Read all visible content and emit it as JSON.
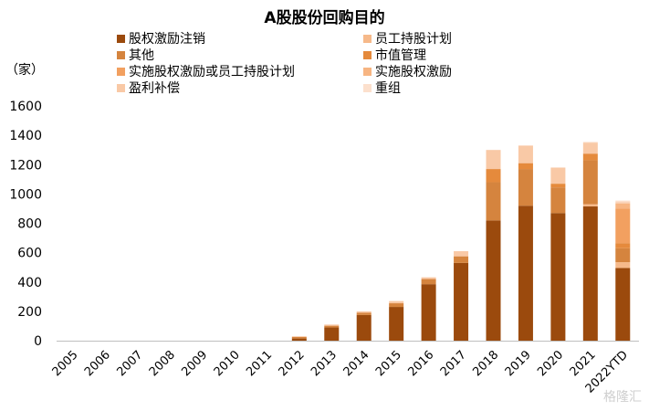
{
  "chart_data": {
    "type": "bar",
    "stacked": true,
    "title": "A股股份回购目的",
    "unit_label": "（家）",
    "categories": [
      "2005",
      "2006",
      "2007",
      "2008",
      "2009",
      "2010",
      "2011",
      "2012",
      "2013",
      "2014",
      "2015",
      "2016",
      "2017",
      "2018",
      "2019",
      "2020",
      "2021",
      "2022YTD"
    ],
    "ylim": [
      0,
      1600
    ],
    "yticks": [
      0,
      200,
      400,
      600,
      800,
      1000,
      1200,
      1400,
      1600
    ],
    "grid": false,
    "legend_position": "top",
    "series": [
      {
        "name": "股权激励注销",
        "color": "#9b4a0d",
        "values": [
          0,
          0,
          0,
          0,
          0,
          0,
          0,
          15,
          90,
          175,
          230,
          385,
          530,
          820,
          920,
          870,
          915,
          495
        ]
      },
      {
        "name": "员工持股计划",
        "color": "#f6b98a",
        "values": [
          0,
          0,
          0,
          0,
          0,
          0,
          0,
          0,
          0,
          0,
          0,
          0,
          0,
          0,
          0,
          0,
          15,
          40
        ]
      },
      {
        "name": "其他",
        "color": "#d5843e",
        "values": [
          0,
          0,
          0,
          0,
          0,
          0,
          0,
          10,
          12,
          15,
          25,
          35,
          45,
          260,
          250,
          175,
          300,
          95
        ]
      },
      {
        "name": "市值管理",
        "color": "#e58a3c",
        "values": [
          0,
          0,
          0,
          0,
          0,
          0,
          0,
          0,
          0,
          0,
          0,
          0,
          0,
          90,
          40,
          25,
          45,
          35
        ]
      },
      {
        "name": "实施股权激励或员工持股计划",
        "color": "#f2a060",
        "values": [
          0,
          0,
          0,
          0,
          0,
          0,
          0,
          0,
          0,
          0,
          0,
          0,
          0,
          0,
          0,
          0,
          0,
          235
        ]
      },
      {
        "name": "实施股权激励",
        "color": "#f7b582",
        "values": [
          0,
          0,
          0,
          0,
          0,
          0,
          0,
          0,
          0,
          0,
          0,
          0,
          0,
          0,
          0,
          0,
          0,
          35
        ]
      },
      {
        "name": "盈利补偿",
        "color": "#f9c9a6",
        "values": [
          0,
          0,
          0,
          0,
          0,
          0,
          0,
          5,
          8,
          10,
          15,
          12,
          35,
          130,
          120,
          110,
          75,
          10
        ]
      },
      {
        "name": "重组",
        "color": "#fce0cd",
        "values": [
          0,
          0,
          0,
          0,
          0,
          0,
          0,
          0,
          0,
          0,
          0,
          0,
          0,
          0,
          0,
          0,
          5,
          10
        ]
      }
    ]
  },
  "watermark": "格隆汇"
}
